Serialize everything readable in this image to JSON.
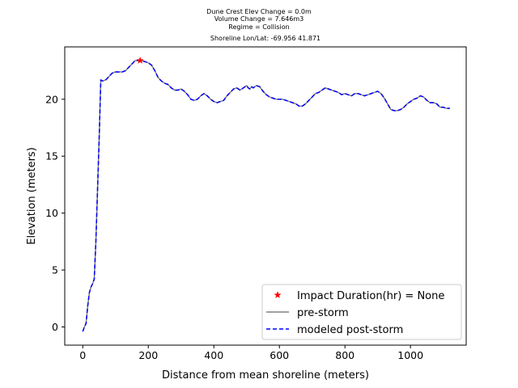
{
  "chart_data": {
    "type": "line",
    "title_lines": [
      "Dune Crest Elev Change = 0.0m",
      "Volume Change = 7.646m3",
      "Regime = Collision",
      "Shoreline Lon/Lat: -69.956 41.871"
    ],
    "xlabel": "Distance from mean shoreline (meters)",
    "ylabel": "Elevation (meters)",
    "xlim": [
      -55,
      1170
    ],
    "ylim": [
      -1.6,
      24.6
    ],
    "xticks": [
      0,
      200,
      400,
      600,
      800,
      1000
    ],
    "yticks": [
      0,
      5,
      10,
      15,
      20
    ],
    "grid": false,
    "legend_position": "lower-right",
    "colors": {
      "pre_storm": "#808080",
      "post_storm": "#0000ff",
      "impact_marker": "#ff0000"
    },
    "impact_point": {
      "name": "Impact Duration(hr) = None",
      "x": 175,
      "y": 23.4
    },
    "series": [
      {
        "name": "pre-storm",
        "style": "solid",
        "x": [
          0,
          5,
          10,
          15,
          20,
          25,
          30,
          35,
          40,
          45,
          50,
          55,
          60,
          70,
          80,
          90,
          100,
          110,
          120,
          130,
          140,
          150,
          160,
          170,
          175,
          180,
          190,
          200,
          210,
          220,
          230,
          240,
          250,
          260,
          270,
          280,
          290,
          300,
          310,
          320,
          330,
          340,
          350,
          360,
          370,
          380,
          390,
          400,
          410,
          420,
          430,
          440,
          450,
          460,
          470,
          480,
          490,
          500,
          505,
          510,
          515,
          520,
          525,
          530,
          540,
          550,
          560,
          570,
          580,
          590,
          600,
          610,
          620,
          630,
          640,
          650,
          660,
          670,
          680,
          690,
          700,
          710,
          720,
          730,
          740,
          750,
          760,
          770,
          780,
          790,
          800,
          810,
          820,
          830,
          840,
          850,
          860,
          870,
          880,
          890,
          900,
          910,
          920,
          930,
          940,
          950,
          960,
          970,
          980,
          990,
          1000,
          1010,
          1020,
          1030,
          1040,
          1050,
          1060,
          1070,
          1080,
          1090,
          1100,
          1110,
          1120
        ],
        "y": [
          -0.4,
          0.0,
          0.3,
          1.8,
          3.0,
          3.5,
          3.8,
          4.2,
          7.5,
          12.0,
          16.5,
          21.7,
          21.6,
          21.7,
          22.0,
          22.3,
          22.4,
          22.4,
          22.4,
          22.5,
          22.8,
          23.1,
          23.4,
          23.4,
          23.4,
          23.4,
          23.3,
          23.2,
          23.0,
          22.5,
          21.9,
          21.6,
          21.4,
          21.3,
          21.0,
          20.8,
          20.8,
          20.9,
          20.7,
          20.4,
          20.0,
          19.9,
          20.0,
          20.3,
          20.5,
          20.3,
          20.0,
          19.8,
          19.7,
          19.8,
          19.9,
          20.3,
          20.6,
          20.9,
          21.0,
          20.8,
          21.0,
          21.2,
          21.0,
          20.9,
          21.1,
          21.0,
          21.1,
          21.2,
          21.1,
          20.7,
          20.4,
          20.2,
          20.1,
          20.0,
          20.0,
          20.0,
          19.9,
          19.8,
          19.7,
          19.6,
          19.4,
          19.4,
          19.6,
          19.9,
          20.2,
          20.5,
          20.6,
          20.8,
          21.0,
          20.9,
          20.8,
          20.7,
          20.6,
          20.4,
          20.5,
          20.4,
          20.3,
          20.5,
          20.5,
          20.4,
          20.3,
          20.4,
          20.5,
          20.6,
          20.7,
          20.5,
          20.1,
          19.6,
          19.1,
          19.0,
          19.0,
          19.1,
          19.3,
          19.6,
          19.8,
          20.0,
          20.1,
          20.3,
          20.2,
          19.9,
          19.7,
          19.7,
          19.6,
          19.3,
          19.3,
          19.2,
          19.2
        ]
      },
      {
        "name": "modeled post-storm",
        "style": "dashed",
        "x": [
          0,
          5,
          10,
          15,
          20,
          25,
          30,
          35,
          40,
          45,
          50,
          55,
          60,
          70,
          80,
          90,
          100,
          110,
          120,
          130,
          140,
          150,
          160,
          170,
          175,
          180,
          190,
          200,
          210,
          220,
          230,
          240,
          250,
          260,
          270,
          280,
          290,
          300,
          310,
          320,
          330,
          340,
          350,
          360,
          370,
          380,
          390,
          400,
          410,
          420,
          430,
          440,
          450,
          460,
          470,
          480,
          490,
          500,
          505,
          510,
          515,
          520,
          525,
          530,
          540,
          550,
          560,
          570,
          580,
          590,
          600,
          610,
          620,
          630,
          640,
          650,
          660,
          670,
          680,
          690,
          700,
          710,
          720,
          730,
          740,
          750,
          760,
          770,
          780,
          790,
          800,
          810,
          820,
          830,
          840,
          850,
          860,
          870,
          880,
          890,
          900,
          910,
          920,
          930,
          940,
          950,
          960,
          970,
          980,
          990,
          1000,
          1010,
          1020,
          1030,
          1040,
          1050,
          1060,
          1070,
          1080,
          1090,
          1100,
          1110,
          1120
        ],
        "y": [
          -0.4,
          0.0,
          0.3,
          1.8,
          3.0,
          3.5,
          3.8,
          4.2,
          7.5,
          12.0,
          16.5,
          21.7,
          21.6,
          21.7,
          22.0,
          22.3,
          22.4,
          22.4,
          22.4,
          22.5,
          22.8,
          23.1,
          23.4,
          23.4,
          23.4,
          23.4,
          23.3,
          23.2,
          23.0,
          22.5,
          21.9,
          21.6,
          21.4,
          21.3,
          21.0,
          20.8,
          20.8,
          20.9,
          20.7,
          20.4,
          20.0,
          19.9,
          20.0,
          20.3,
          20.5,
          20.3,
          20.0,
          19.8,
          19.7,
          19.8,
          19.9,
          20.3,
          20.6,
          20.9,
          21.0,
          20.8,
          21.0,
          21.2,
          21.0,
          20.9,
          21.1,
          21.0,
          21.1,
          21.2,
          21.1,
          20.7,
          20.4,
          20.2,
          20.1,
          20.0,
          20.0,
          20.0,
          19.9,
          19.8,
          19.7,
          19.6,
          19.4,
          19.4,
          19.6,
          19.9,
          20.2,
          20.5,
          20.6,
          20.8,
          21.0,
          20.9,
          20.8,
          20.7,
          20.6,
          20.4,
          20.5,
          20.4,
          20.3,
          20.5,
          20.5,
          20.4,
          20.3,
          20.4,
          20.5,
          20.6,
          20.7,
          20.5,
          20.1,
          19.6,
          19.1,
          19.0,
          19.0,
          19.1,
          19.3,
          19.6,
          19.8,
          20.0,
          20.1,
          20.3,
          20.2,
          19.9,
          19.7,
          19.7,
          19.6,
          19.3,
          19.3,
          19.2,
          19.2
        ]
      }
    ]
  }
}
